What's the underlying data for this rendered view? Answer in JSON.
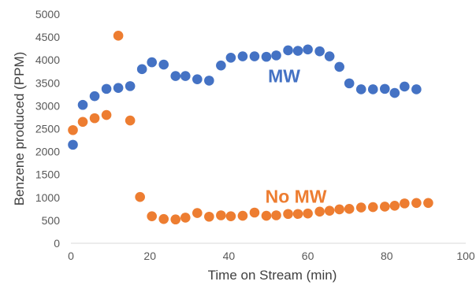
{
  "chart_data": {
    "type": "scatter",
    "title": "",
    "xlabel": "Time on Stream (min)",
    "ylabel": "Benzene produced (PPM)",
    "xlim": [
      0,
      100
    ],
    "ylim": [
      0,
      5000
    ],
    "xticks": [
      0,
      20,
      40,
      60,
      80,
      100
    ],
    "yticks": [
      0,
      500,
      1000,
      1500,
      2000,
      2500,
      3000,
      3500,
      4000,
      4500,
      5000
    ],
    "grid": false,
    "legend": "none",
    "series": [
      {
        "color": "#4472C4",
        "points": [
          [
            0.5,
            2150
          ],
          [
            3,
            3020
          ],
          [
            6,
            3210
          ],
          [
            9,
            3370
          ],
          [
            12,
            3390
          ],
          [
            15,
            3430
          ],
          [
            18,
            3800
          ],
          [
            20.5,
            3950
          ],
          [
            23.5,
            3900
          ],
          [
            26.5,
            3650
          ],
          [
            29,
            3650
          ],
          [
            32,
            3580
          ],
          [
            35,
            3550
          ],
          [
            38,
            3880
          ],
          [
            40.5,
            4050
          ],
          [
            43.5,
            4080
          ],
          [
            46.5,
            4080
          ],
          [
            49.5,
            4070
          ],
          [
            52,
            4100
          ],
          [
            55,
            4210
          ],
          [
            57.5,
            4200
          ],
          [
            60,
            4230
          ],
          [
            63,
            4190
          ],
          [
            65.5,
            4080
          ],
          [
            68,
            3850
          ],
          [
            70.5,
            3490
          ],
          [
            73.5,
            3360
          ],
          [
            76.5,
            3360
          ],
          [
            79.5,
            3370
          ],
          [
            82,
            3280
          ],
          [
            84.5,
            3420
          ],
          [
            87.5,
            3360
          ]
        ]
      },
      {
        "color": "#ED7D31",
        "points": [
          [
            0.5,
            2470
          ],
          [
            3,
            2650
          ],
          [
            6,
            2730
          ],
          [
            9,
            2800
          ],
          [
            12,
            4530
          ],
          [
            15,
            2680
          ],
          [
            17.5,
            1010
          ],
          [
            20.5,
            590
          ],
          [
            23.5,
            530
          ],
          [
            26.5,
            520
          ],
          [
            29,
            560
          ],
          [
            32,
            660
          ],
          [
            35,
            580
          ],
          [
            38,
            610
          ],
          [
            40.5,
            590
          ],
          [
            43.5,
            600
          ],
          [
            46.5,
            670
          ],
          [
            49.5,
            600
          ],
          [
            52,
            610
          ],
          [
            55,
            640
          ],
          [
            57.5,
            640
          ],
          [
            60,
            650
          ],
          [
            63,
            690
          ],
          [
            65.5,
            710
          ],
          [
            68,
            740
          ],
          [
            70.5,
            750
          ],
          [
            73.5,
            780
          ],
          [
            76.5,
            790
          ],
          [
            79.5,
            800
          ],
          [
            82,
            820
          ],
          [
            84.5,
            870
          ],
          [
            87.5,
            880
          ],
          [
            90.5,
            880
          ]
        ]
      }
    ],
    "annotations": [
      {
        "text": "MW",
        "x": 54,
        "y": 3650,
        "color": "#4472C4"
      },
      {
        "text": "No MW",
        "x": 57,
        "y": 1020,
        "color": "#ED7D31"
      }
    ]
  }
}
